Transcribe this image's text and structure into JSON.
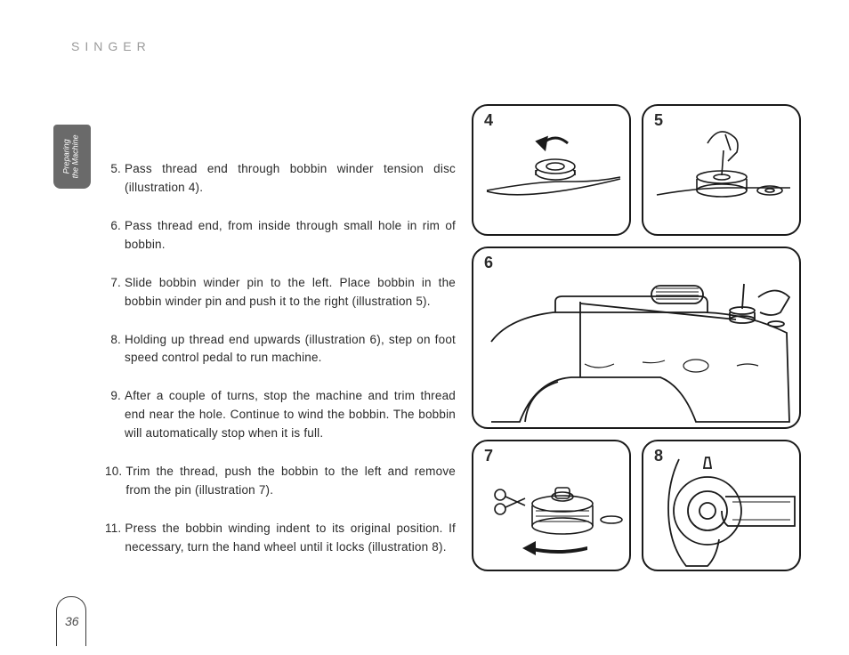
{
  "brand": "SINGER",
  "side_tab": "Preparing\nthe Machine",
  "page_number": "36",
  "instructions": [
    {
      "n": "5.",
      "t": "Pass thread end through bobbin winder tension disc (illustration 4)."
    },
    {
      "n": "6.",
      "t": "Pass thread end, from inside through small hole in rim of bobbin."
    },
    {
      "n": "7.",
      "t": "Slide bobbin winder pin to the left. Place bobbin in the bobbin winder pin and push it to the right (illustration 5)."
    },
    {
      "n": "8.",
      "t": "Holding up thread end upwards (illustration 6), step on foot speed control pedal to run machine."
    },
    {
      "n": "9.",
      "t": "After a couple of turns, stop the machine and trim thread end near the hole. Continue to wind the bobbin. The bobbin will automatically stop when it is full."
    },
    {
      "n": "10.",
      "t": "Trim the thread, push the bobbin to the left and remove from the pin (illustration 7)."
    },
    {
      "n": "11.",
      "t": "Press the bobbin winding indent to its original position. If necessary, turn the hand wheel until it locks (illustration 8)."
    }
  ],
  "figures": {
    "f4": "4",
    "f5": "5",
    "f6": "6",
    "f7": "7",
    "f8": "8"
  },
  "colors": {
    "text": "#2a2a2a",
    "border": "#1a1a1a",
    "brand": "#9a9a9a",
    "tab": "#6a6a6a"
  }
}
